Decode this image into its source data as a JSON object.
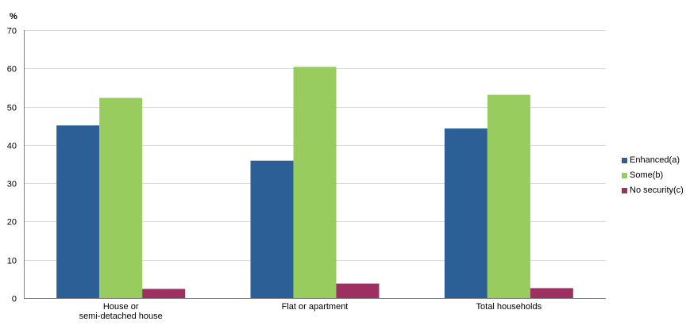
{
  "chart_data": {
    "type": "bar",
    "unit_label": "%",
    "categories": [
      [
        "House or",
        "semi-detached house"
      ],
      [
        "Flat or apartment"
      ],
      [
        "Total households"
      ]
    ],
    "series": [
      {
        "name": "Enhanced(a)",
        "color": "#2d5f97",
        "values": [
          45.1,
          35.9,
          44.3
        ]
      },
      {
        "name": "Some(b)",
        "color": "#99cc5f",
        "values": [
          52.3,
          60.4,
          53.1
        ]
      },
      {
        "name": "No security(c)",
        "color": "#9c3161",
        "values": [
          2.4,
          3.8,
          2.6
        ]
      }
    ],
    "ylim": [
      0,
      70
    ],
    "yticks": [
      0,
      10,
      20,
      30,
      40,
      50,
      60,
      70
    ],
    "grid": true,
    "legend_position": "right"
  }
}
